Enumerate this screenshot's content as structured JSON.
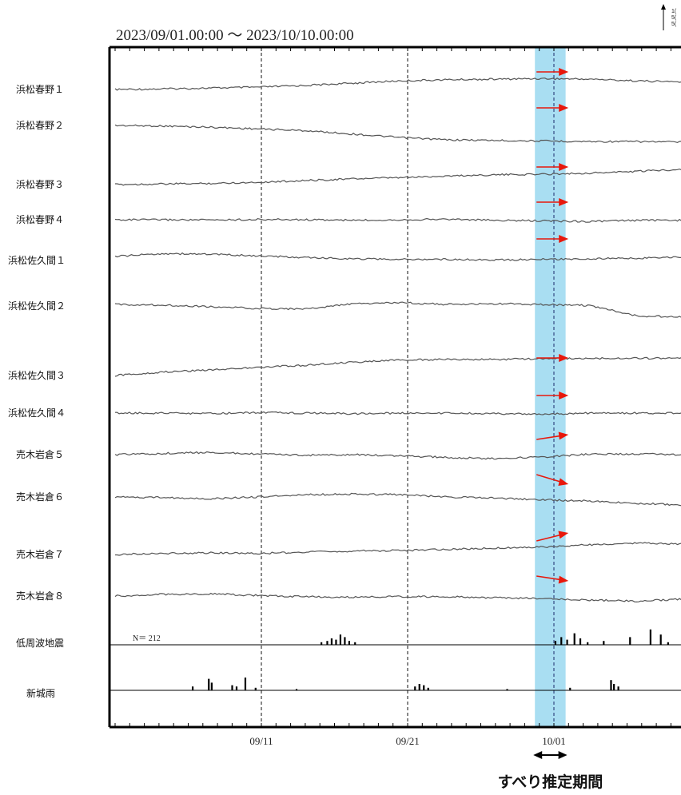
{
  "chart_data": {
    "type": "line",
    "title": "2023/09/01.00:00 ～ 2023/10/10.00:00",
    "x_start": "2023-09-01",
    "x_end": "2023-10-10",
    "x_tick_labels": [
      "09/11",
      "09/21",
      "10/01"
    ],
    "series": [
      {
        "name": "浜松春野１",
        "arrow": true,
        "values": [
          0.0,
          0.02,
          0.05,
          0.08,
          0.14,
          0.22,
          0.3,
          0.34,
          0.36,
          0.38,
          0.36,
          0.3,
          0.26
        ]
      },
      {
        "name": "浜松春野２",
        "arrow": true,
        "values": [
          0.0,
          -0.02,
          -0.06,
          -0.12,
          -0.18,
          -0.3,
          -0.42,
          -0.5,
          -0.52,
          -0.54,
          -0.56,
          -0.56,
          -0.58
        ]
      },
      {
        "name": "浜松春野３",
        "arrow": true,
        "values": [
          0.0,
          0.02,
          0.04,
          0.08,
          0.14,
          0.2,
          0.24,
          0.3,
          0.34,
          0.36,
          0.4,
          0.46,
          0.54
        ]
      },
      {
        "name": "浜松春野４",
        "arrow": true,
        "values": [
          0.0,
          0.0,
          -0.01,
          0.01,
          0.0,
          -0.02,
          0.0,
          0.02,
          -0.02,
          -0.04,
          -0.06,
          -0.02,
          -0.02
        ]
      },
      {
        "name": "浜松佐久間１",
        "arrow": true,
        "values": [
          0.0,
          0.1,
          0.08,
          0.02,
          -0.04,
          -0.08,
          -0.1,
          -0.1,
          -0.12,
          -0.1,
          -0.08,
          -0.06,
          -0.02
        ]
      },
      {
        "name": "浜松佐久間２",
        "arrow": false,
        "values": [
          0.0,
          -0.02,
          -0.08,
          -0.14,
          -0.16,
          0.02,
          0.06,
          0.0,
          0.02,
          0.0,
          -0.04,
          -0.4,
          -0.44
        ]
      },
      {
        "name": "浜松佐久間３",
        "arrow": true,
        "values": [
          0.0,
          0.12,
          0.2,
          0.28,
          0.36,
          0.46,
          0.54,
          0.56,
          0.56,
          0.58,
          0.6,
          0.6,
          0.6
        ]
      },
      {
        "name": "浜松佐久間４",
        "arrow": true,
        "values": [
          0.0,
          0.0,
          -0.02,
          0.02,
          0.0,
          -0.02,
          0.0,
          0.0,
          -0.02,
          -0.04,
          0.0,
          0.0,
          0.0
        ]
      },
      {
        "name": "売木岩倉５",
        "arrow": true,
        "values": [
          0.0,
          0.04,
          0.08,
          0.02,
          -0.02,
          0.0,
          -0.04,
          -0.1,
          -0.14,
          -0.08,
          0.02,
          0.02,
          0.0
        ]
      },
      {
        "name": "売木岩倉６",
        "arrow": true,
        "values": [
          0.0,
          -0.02,
          -0.06,
          0.0,
          0.08,
          0.1,
          0.08,
          0.0,
          -0.04,
          -0.1,
          -0.14,
          -0.22,
          -0.28
        ]
      },
      {
        "name": "売木岩倉７",
        "arrow": true,
        "values": [
          0.0,
          0.04,
          0.06,
          0.04,
          0.08,
          0.12,
          0.14,
          0.18,
          0.22,
          0.26,
          0.34,
          0.4,
          0.36
        ]
      },
      {
        "name": "売木岩倉８",
        "arrow": true,
        "values": [
          0.0,
          0.06,
          0.08,
          0.02,
          -0.02,
          -0.04,
          -0.02,
          -0.02,
          -0.06,
          -0.08,
          -0.14,
          -0.18,
          -0.1
        ]
      }
    ],
    "bar_series": [
      {
        "name": "低周波地震",
        "count_label": "N＝  212",
        "events": [
          [
            14.1,
            2
          ],
          [
            14.5,
            3
          ],
          [
            14.8,
            5
          ],
          [
            15.1,
            4
          ],
          [
            15.4,
            8
          ],
          [
            15.7,
            6
          ],
          [
            16.0,
            3
          ],
          [
            16.4,
            2
          ],
          [
            30.1,
            3
          ],
          [
            30.5,
            6
          ],
          [
            30.9,
            4
          ],
          [
            31.4,
            9
          ],
          [
            31.8,
            5
          ],
          [
            32.3,
            2
          ],
          [
            33.4,
            3
          ],
          [
            35.2,
            6
          ],
          [
            36.6,
            12
          ],
          [
            37.3,
            8
          ],
          [
            37.8,
            2
          ]
        ]
      },
      {
        "name": "新城雨",
        "events": [
          [
            5.3,
            3
          ],
          [
            6.4,
            9
          ],
          [
            6.6,
            6
          ],
          [
            8.0,
            4
          ],
          [
            8.3,
            3
          ],
          [
            8.9,
            10
          ],
          [
            9.6,
            2
          ],
          [
            12.4,
            1
          ],
          [
            20.5,
            3
          ],
          [
            20.8,
            5
          ],
          [
            21.1,
            4
          ],
          [
            21.4,
            2
          ],
          [
            26.8,
            1
          ],
          [
            31.1,
            2
          ],
          [
            33.9,
            8
          ],
          [
            34.1,
            5
          ],
          [
            34.4,
            3
          ]
        ]
      }
    ],
    "slip_period_days": [
      28.7,
      30.8
    ],
    "period_label": "すべり推定期間",
    "scale_labels": [
      "1(",
      "5(",
      "5("
    ],
    "colors": {
      "series": "#555555",
      "arrow": "#e8180c",
      "highlight": "#a9def2",
      "axis": "#000000"
    }
  }
}
